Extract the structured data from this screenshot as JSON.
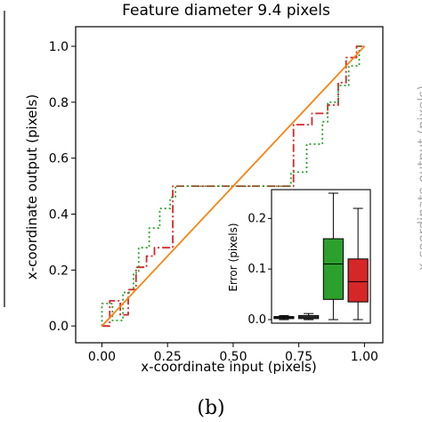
{
  "chart_data": {
    "type": "line",
    "title": "Feature diameter 9.4 pixels",
    "xlabel": "x-coordinate input (pixels)",
    "ylabel": "x-coordinate output (pixels)",
    "xlim": [
      -0.1,
      1.07
    ],
    "ylim": [
      -0.06,
      1.07
    ],
    "xticks": [
      "0.00",
      "0.25",
      "0.50",
      "0.75",
      "1.00"
    ],
    "yticks": [
      "0.0",
      "0.2",
      "0.4",
      "0.6",
      "0.8",
      "1.0"
    ],
    "grid": false,
    "series": [
      {
        "color": "#d62728",
        "style": "dashdot",
        "x": [
          0.0,
          0.03,
          0.03,
          0.07,
          0.07,
          0.1,
          0.1,
          0.13,
          0.13,
          0.17,
          0.17,
          0.2,
          0.2,
          0.27,
          0.27,
          0.73,
          0.73,
          0.8,
          0.8,
          0.86,
          0.86,
          0.9,
          0.9,
          0.93,
          0.93,
          0.97,
          0.97,
          1.0
        ],
        "y": [
          0.0,
          0.0,
          0.09,
          0.09,
          0.04,
          0.04,
          0.13,
          0.13,
          0.21,
          0.21,
          0.25,
          0.25,
          0.28,
          0.28,
          0.5,
          0.5,
          0.72,
          0.72,
          0.76,
          0.76,
          0.79,
          0.79,
          0.87,
          0.87,
          0.96,
          0.96,
          1.0,
          1.0
        ]
      },
      {
        "color": "#2ca02c",
        "style": "dotted",
        "x": [
          0.0,
          0.0,
          0.04,
          0.04,
          0.08,
          0.08,
          0.12,
          0.12,
          0.14,
          0.14,
          0.18,
          0.18,
          0.22,
          0.22,
          0.26,
          0.26,
          0.28,
          0.28,
          0.72,
          0.72,
          0.78,
          0.78,
          0.84,
          0.84,
          0.86,
          0.86,
          0.9,
          0.9,
          0.94,
          0.94,
          0.98,
          0.98,
          1.0
        ],
        "y": [
          0.0,
          0.08,
          0.08,
          0.02,
          0.02,
          0.12,
          0.12,
          0.19,
          0.19,
          0.28,
          0.28,
          0.35,
          0.35,
          0.42,
          0.42,
          0.46,
          0.46,
          0.5,
          0.5,
          0.55,
          0.55,
          0.65,
          0.65,
          0.73,
          0.73,
          0.8,
          0.8,
          0.86,
          0.86,
          0.93,
          0.93,
          1.0,
          1.0
        ]
      },
      {
        "color": "#d4a017",
        "style": "solid",
        "x": [
          0.0,
          1.0
        ],
        "y": [
          0.0,
          1.0
        ]
      },
      {
        "color": "#ff7f0e",
        "style": "solid",
        "x": [
          0.0,
          1.0
        ],
        "y": [
          0.0,
          1.0
        ]
      }
    ],
    "inset": {
      "type": "box",
      "ylabel": "Error (pixels)",
      "ylim": [
        0.0,
        0.25
      ],
      "yticks": [
        "0.0",
        "0.1",
        "0.2"
      ],
      "boxes": [
        {
          "color": "#555555",
          "whislo": 0.0,
          "q1": 0.002,
          "med": 0.004,
          "q3": 0.006,
          "whishi": 0.008
        },
        {
          "color": "#555555",
          "whislo": 0.0,
          "q1": 0.002,
          "med": 0.005,
          "q3": 0.008,
          "whishi": 0.012
        },
        {
          "color": "#2ca02c",
          "whislo": 0.0,
          "q1": 0.04,
          "med": 0.11,
          "q3": 0.16,
          "whishi": 0.25
        },
        {
          "color": "#d62728",
          "whislo": 0.0,
          "q1": 0.035,
          "med": 0.075,
          "q3": 0.12,
          "whishi": 0.22
        }
      ]
    }
  },
  "caption": "(b)",
  "right_clip_text": "x-coordinate output (pixels)"
}
